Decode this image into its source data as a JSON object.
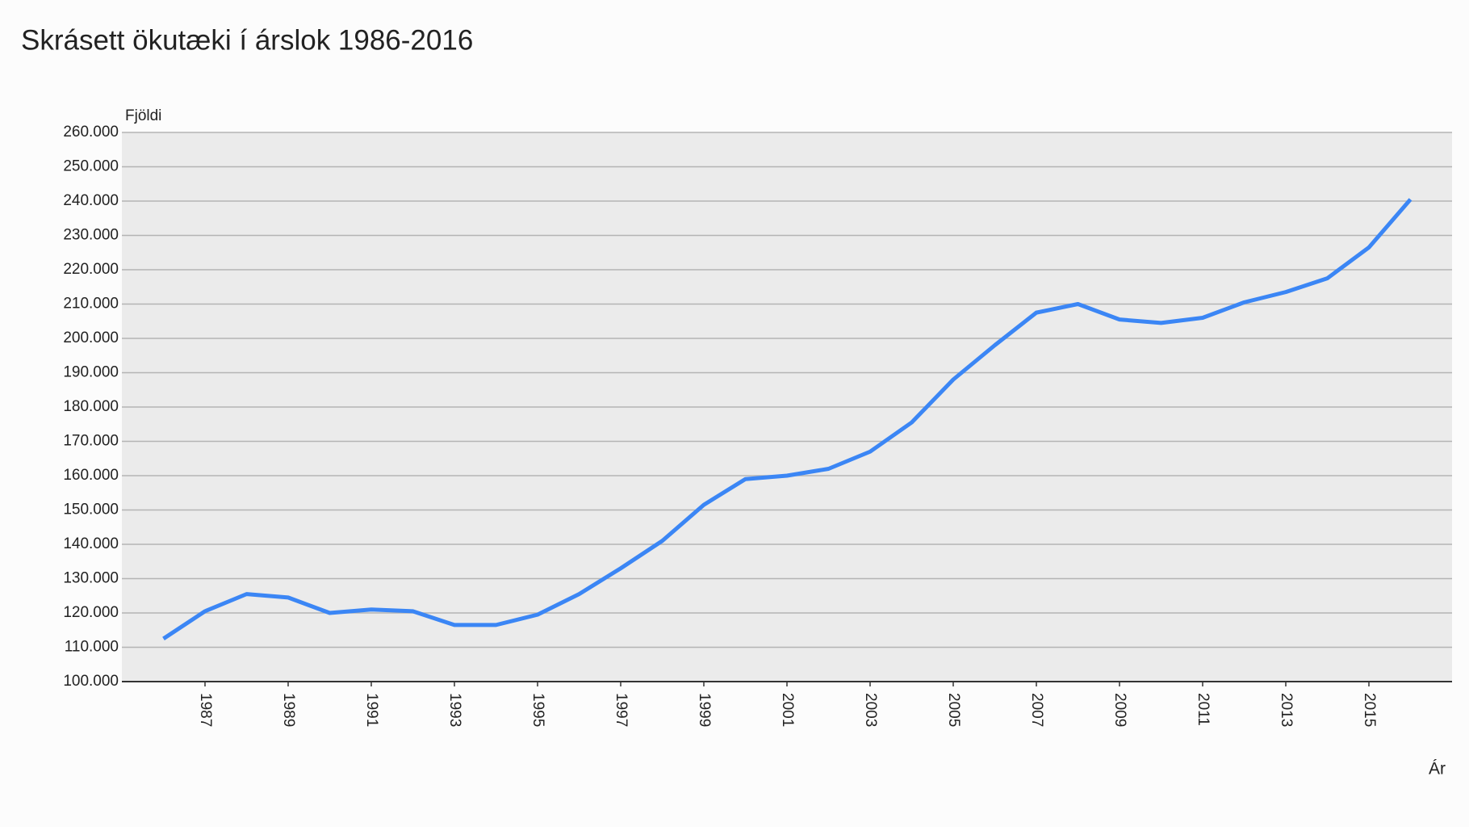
{
  "chart_data": {
    "type": "line",
    "title": "Skrásett ökutæki í árslok 1986-2016",
    "y_label": "Fjöldi",
    "x_label": "Ár",
    "x": [
      1986,
      1987,
      1988,
      1989,
      1990,
      1991,
      1992,
      1993,
      1994,
      1995,
      1996,
      1997,
      1998,
      1999,
      2000,
      2001,
      2002,
      2003,
      2004,
      2005,
      2006,
      2007,
      2008,
      2009,
      2010,
      2011,
      2012,
      2013,
      2014,
      2015,
      2016
    ],
    "series": [
      {
        "name": "Fjöldi",
        "color": "#3b86f5",
        "values": [
          112500,
          120500,
          125500,
          124500,
          120000,
          121000,
          120500,
          116500,
          116500,
          119500,
          125500,
          133000,
          141000,
          151500,
          159000,
          160000,
          162000,
          167000,
          175500,
          188000,
          198000,
          207500,
          210000,
          205500,
          204500,
          206000,
          210500,
          213500,
          217500,
          226500,
          240500
        ]
      }
    ],
    "xlim": [
      1985,
      2017
    ],
    "xticks": [
      1987,
      1989,
      1991,
      1993,
      1995,
      1997,
      1999,
      2001,
      2003,
      2005,
      2007,
      2009,
      2011,
      2013,
      2015
    ],
    "ylim": [
      100000,
      260000
    ],
    "yticks": [
      {
        "value": 100000,
        "label": "100.000"
      },
      {
        "value": 110000,
        "label": "110.000"
      },
      {
        "value": 120000,
        "label": "120.000"
      },
      {
        "value": 130000,
        "label": "130.000"
      },
      {
        "value": 140000,
        "label": "140.000"
      },
      {
        "value": 150000,
        "label": "150.000"
      },
      {
        "value": 160000,
        "label": "160.000"
      },
      {
        "value": 170000,
        "label": "170.000"
      },
      {
        "value": 180000,
        "label": "180.000"
      },
      {
        "value": 190000,
        "label": "190.000"
      },
      {
        "value": 200000,
        "label": "200.000"
      },
      {
        "value": 210000,
        "label": "210.000"
      },
      {
        "value": 220000,
        "label": "220.000"
      },
      {
        "value": 230000,
        "label": "230.000"
      },
      {
        "value": 240000,
        "label": "240.000"
      },
      {
        "value": 250000,
        "label": "250.000"
      },
      {
        "value": 260000,
        "label": "260.000"
      }
    ],
    "grid": true
  }
}
